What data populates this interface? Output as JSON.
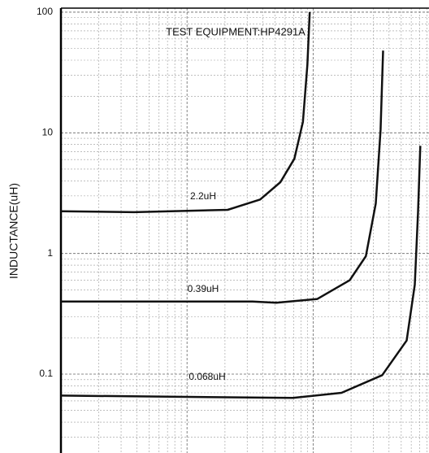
{
  "chart_data": {
    "type": "line",
    "title": "TEST EQUIPMENT:HP4291A",
    "ylabel": "INDUCTANCE(uH)",
    "log_x": true,
    "log_y": true,
    "xlim": [
      1,
      830
    ],
    "ylim": [
      0.0222,
      108
    ],
    "yticks": [
      {
        "value": 0.1,
        "label": "0.1"
      },
      1,
      10,
      100
    ],
    "xgrid": [
      1,
      2,
      3,
      4,
      5,
      6,
      7,
      8,
      9,
      10,
      20,
      30,
      40,
      50,
      60,
      70,
      80,
      90,
      100,
      200,
      300,
      400,
      500,
      600,
      700,
      800
    ],
    "ygrid": [
      0.03,
      0.04,
      0.05,
      0.06,
      0.07,
      0.08,
      0.09,
      0.2,
      0.3,
      0.4,
      0.5,
      0.6,
      0.7,
      0.8,
      0.9,
      2,
      3,
      4,
      5,
      6,
      7,
      8,
      9,
      20,
      30,
      40,
      50,
      60,
      70,
      80,
      90
    ],
    "grid": true,
    "series": [
      {
        "name": "2.2uH",
        "color": "#111111",
        "x": [
          1,
          3.8,
          21,
          38,
          55,
          71,
          83,
          90,
          94
        ],
        "values": [
          2.24,
          2.2,
          2.3,
          2.8,
          3.9,
          6.1,
          12.3,
          36.5,
          100
        ]
      },
      {
        "name": "0.39uH",
        "color": "#111111",
        "x": [
          1,
          33,
          51,
          108,
          195,
          262,
          314,
          343,
          359
        ],
        "values": [
          0.4,
          0.4,
          0.39,
          0.42,
          0.6,
          0.95,
          2.6,
          10.6,
          48
        ]
      },
      {
        "name": "0.068uH",
        "color": "#111111",
        "x": [
          1,
          69,
          168,
          353,
          552,
          640,
          679,
          708
        ],
        "values": [
          0.0664,
          0.0635,
          0.07,
          0.098,
          0.19,
          0.55,
          2.2,
          7.8
        ]
      }
    ]
  }
}
